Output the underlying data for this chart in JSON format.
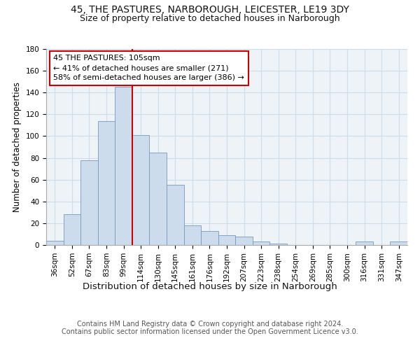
{
  "title": "45, THE PASTURES, NARBOROUGH, LEICESTER, LE19 3DY",
  "subtitle": "Size of property relative to detached houses in Narborough",
  "xlabel": "Distribution of detached houses by size in Narborough",
  "ylabel": "Number of detached properties",
  "bar_labels": [
    "36sqm",
    "52sqm",
    "67sqm",
    "83sqm",
    "99sqm",
    "114sqm",
    "130sqm",
    "145sqm",
    "161sqm",
    "176sqm",
    "192sqm",
    "207sqm",
    "223sqm",
    "238sqm",
    "254sqm",
    "269sqm",
    "285sqm",
    "300sqm",
    "316sqm",
    "331sqm",
    "347sqm"
  ],
  "bar_values": [
    4,
    28,
    78,
    114,
    145,
    101,
    85,
    55,
    18,
    13,
    9,
    8,
    3,
    1,
    0,
    0,
    0,
    0,
    3,
    0,
    3
  ],
  "bar_color": "#ccdcec",
  "bar_edge_color": "#7799bb",
  "vline_x": 4.5,
  "annotation_text": "45 THE PASTURES: 105sqm\n← 41% of detached houses are smaller (271)\n58% of semi-detached houses are larger (386) →",
  "annotation_box_color": "#ffffff",
  "annotation_box_edge": "#cc0000",
  "vline_color": "#cc0000",
  "ylim": [
    0,
    180
  ],
  "yticks": [
    0,
    20,
    40,
    60,
    80,
    100,
    120,
    140,
    160,
    180
  ],
  "grid_color": "#ccdde8",
  "background_color": "#eef3f8",
  "footer_text": "Contains HM Land Registry data © Crown copyright and database right 2024.\nContains public sector information licensed under the Open Government Licence v3.0.",
  "title_fontsize": 10,
  "subtitle_fontsize": 9,
  "xlabel_fontsize": 9.5,
  "ylabel_fontsize": 8.5,
  "annotation_fontsize": 8,
  "tick_fontsize": 7.5
}
